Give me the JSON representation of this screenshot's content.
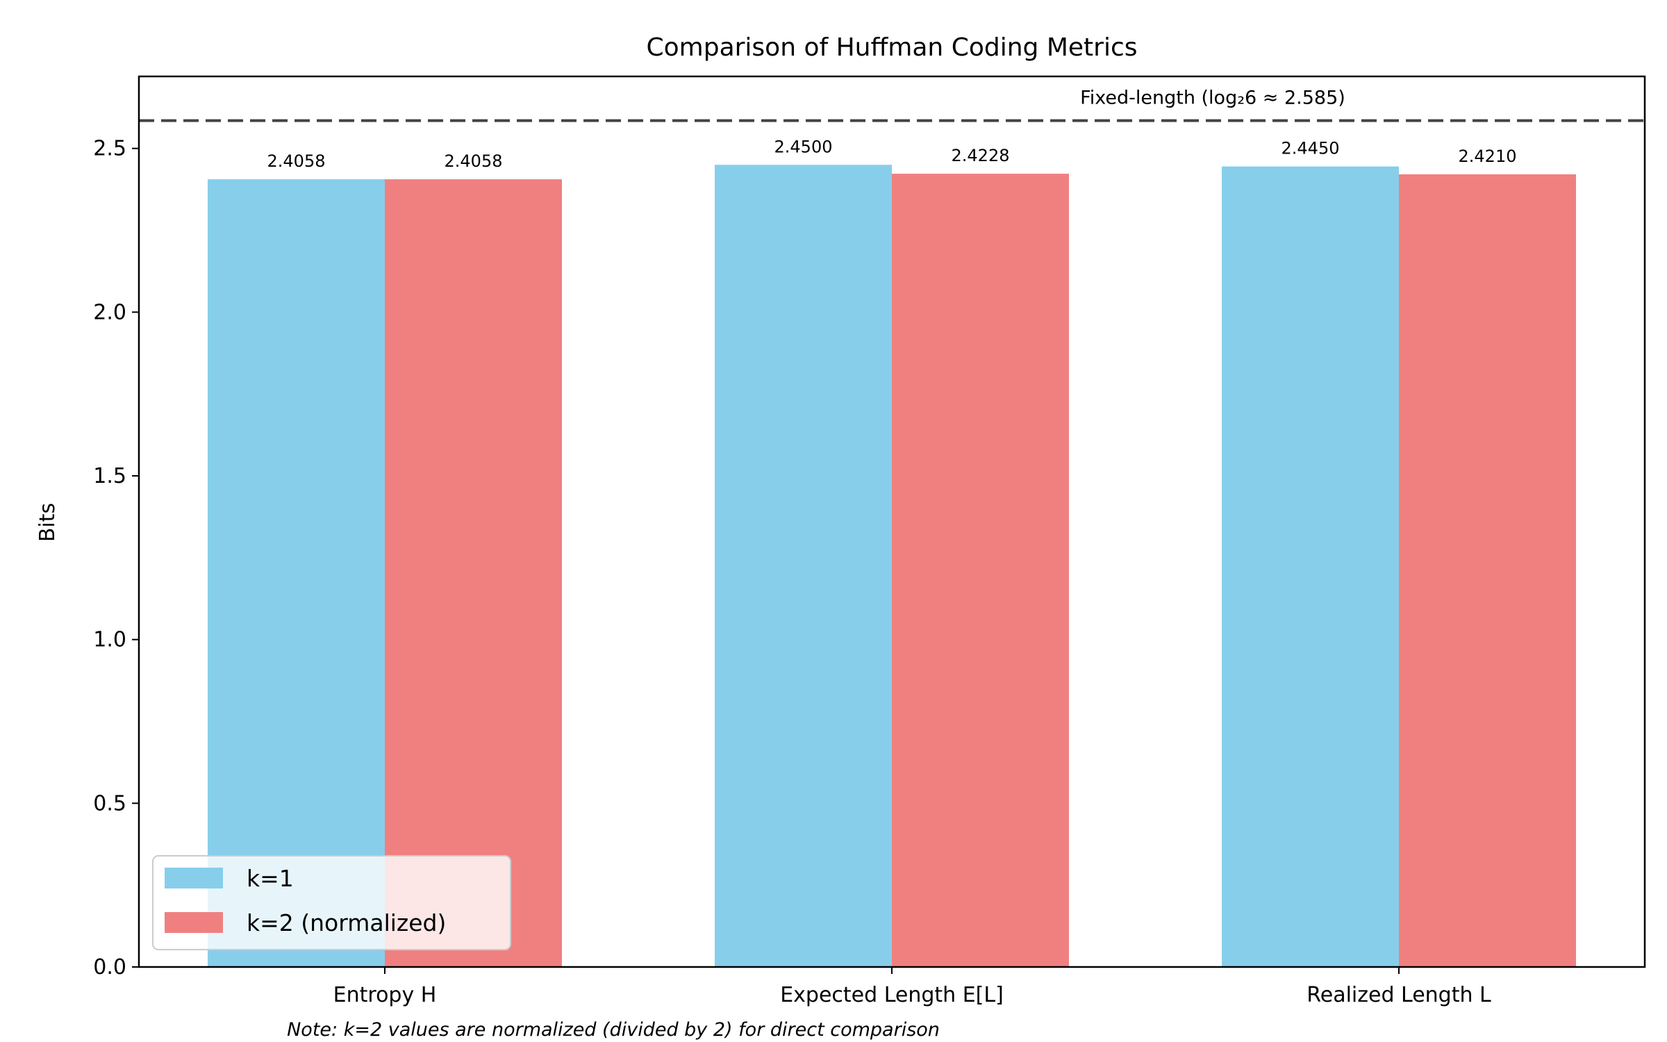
{
  "chart_data": {
    "type": "bar",
    "title": "Comparison of Huffman Coding Metrics",
    "ylabel": "Bits",
    "xlabel": "",
    "categories": [
      "Entropy H",
      "Expected Length E[L]",
      "Realized Length L"
    ],
    "series": [
      {
        "name": "k=1",
        "color": "#87CEEB",
        "values": [
          2.4058,
          2.45,
          2.445
        ],
        "labels": [
          "2.4058",
          "2.4500",
          "2.4450"
        ]
      },
      {
        "name": "k=2 (normalized)",
        "color": "#F08080",
        "values": [
          2.4058,
          2.4228,
          2.421
        ],
        "labels": [
          "2.4058",
          "2.4228",
          "2.4210"
        ]
      }
    ],
    "ylim": [
      0,
      2.72
    ],
    "yticks": [
      0.0,
      0.5,
      1.0,
      1.5,
      2.0,
      2.5
    ],
    "ytick_labels": [
      "0.0",
      "0.5",
      "1.0",
      "1.5",
      "2.0",
      "2.5"
    ],
    "reference_line": {
      "value": 2.585,
      "label": "Fixed-length (log₂6 ≈ 2.585)",
      "style": "dashed",
      "color": "#444444"
    },
    "legend_position": "lower-left",
    "grid": false,
    "note": "Note: k=2 values are normalized (divided by 2) for direct comparison"
  }
}
